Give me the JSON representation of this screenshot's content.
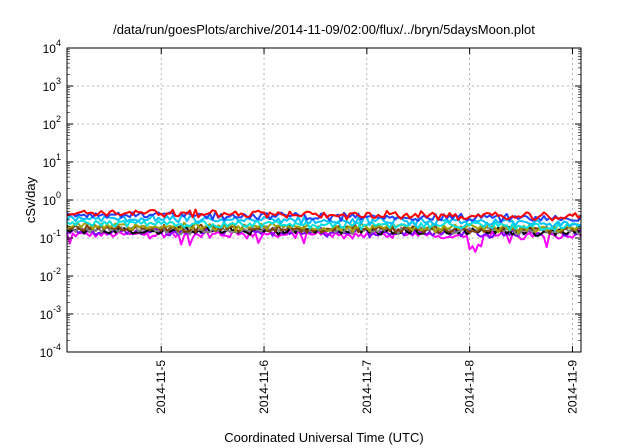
{
  "chart_data": {
    "type": "line",
    "title": "/data/run/goesPlots/archive/2014-11-09/02:00/flux/../bryn/5daysMoon.plot",
    "xlabel": "Coordinated Universal Time (UTC)",
    "ylabel": "cSv/day",
    "y_scale": "log",
    "ylim": [
      0.0001,
      10000
    ],
    "y_ticks": [
      {
        "base": "10",
        "exp": "4",
        "value": 10000
      },
      {
        "base": "10",
        "exp": "3",
        "value": 1000
      },
      {
        "base": "10",
        "exp": "2",
        "value": 100
      },
      {
        "base": "10",
        "exp": "1",
        "value": 10
      },
      {
        "base": "10",
        "exp": "0",
        "value": 1
      },
      {
        "base": "10",
        "exp": "-1",
        "value": 0.1
      },
      {
        "base": "10",
        "exp": "-2",
        "value": 0.01
      },
      {
        "base": "10",
        "exp": "-3",
        "value": 0.001
      },
      {
        "base": "10",
        "exp": "-4",
        "value": 0.0001
      }
    ],
    "xlim": [
      "2014-11-04 02:00",
      "2014-11-09 02:00"
    ],
    "x_ticks": [
      "2014-11-5",
      "2014-11-6",
      "2014-11-7",
      "2014-11-8",
      "2014-11-9"
    ],
    "grid": true,
    "series_colors": [
      "#ff0000",
      "#2040ff",
      "#00c0ff",
      "#00e0e0",
      "#a0a000",
      "#804000",
      "#808080",
      "#ff00ff",
      "#000000",
      "#8000ff"
    ],
    "series": [
      {
        "color": "#ff0000",
        "start": 0.47,
        "end": 0.36
      },
      {
        "color": "#2040ff",
        "start": 0.42,
        "end": 0.33
      },
      {
        "color": "#00c0ff",
        "start": 0.33,
        "end": 0.25
      },
      {
        "color": "#00e0e0",
        "start": 0.25,
        "end": 0.2
      },
      {
        "color": "#a0a000",
        "start": 0.21,
        "end": 0.18
      },
      {
        "color": "#804000",
        "start": 0.19,
        "end": 0.165
      },
      {
        "color": "#808080",
        "start": 0.17,
        "end": 0.16
      },
      {
        "color": "#000000",
        "start": 0.16,
        "end": 0.15
      },
      {
        "color": "#8000ff",
        "start": 0.145,
        "end": 0.14
      },
      {
        "color": "#ff00ff",
        "start": 0.125,
        "end": 0.12
      }
    ]
  }
}
